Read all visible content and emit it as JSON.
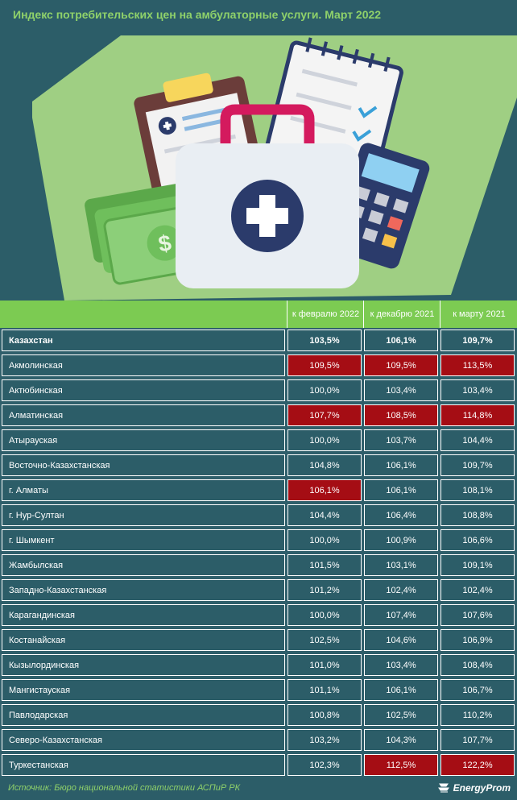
{
  "title": "Индекс потребительских цен на амбулаторные услуги. Март 2022",
  "columns": [
    "к февралю 2022",
    "к декабрю 2021",
    "к марту 2021"
  ],
  "chart_data": {
    "type": "table",
    "title": "Индекс потребительских цен на амбулаторные услуги. Март 2022",
    "columns": [
      "к февралю 2022",
      "к декабрю 2021",
      "к марту 2021"
    ],
    "rows": [
      {
        "name": "Казахстан",
        "values": [
          "103,5%",
          "106,1%",
          "109,7%"
        ],
        "highlight": [
          false,
          false,
          false
        ],
        "bold": true
      },
      {
        "name": "Акмолинская",
        "values": [
          "109,5%",
          "109,5%",
          "113,5%"
        ],
        "highlight": [
          true,
          true,
          true
        ]
      },
      {
        "name": "Актюбинская",
        "values": [
          "100,0%",
          "103,4%",
          "103,4%"
        ],
        "highlight": [
          false,
          false,
          false
        ]
      },
      {
        "name": "Алматинская",
        "values": [
          "107,7%",
          "108,5%",
          "114,8%"
        ],
        "highlight": [
          true,
          true,
          true
        ]
      },
      {
        "name": "Атырауская",
        "values": [
          "100,0%",
          "103,7%",
          "104,4%"
        ],
        "highlight": [
          false,
          false,
          false
        ]
      },
      {
        "name": "Восточно-Казахстанская",
        "values": [
          "104,8%",
          "106,1%",
          "109,7%"
        ],
        "highlight": [
          false,
          false,
          false
        ]
      },
      {
        "name": "г. Алматы",
        "values": [
          "106,1%",
          "106,1%",
          "108,1%"
        ],
        "highlight": [
          true,
          false,
          false
        ]
      },
      {
        "name": "г. Нур-Султан",
        "values": [
          "104,4%",
          "106,4%",
          "108,8%"
        ],
        "highlight": [
          false,
          false,
          false
        ]
      },
      {
        "name": "г. Шымкент",
        "values": [
          "100,0%",
          "100,9%",
          "106,6%"
        ],
        "highlight": [
          false,
          false,
          false
        ]
      },
      {
        "name": "Жамбылская",
        "values": [
          "101,5%",
          "103,1%",
          "109,1%"
        ],
        "highlight": [
          false,
          false,
          false
        ]
      },
      {
        "name": "Западно-Казахстанская",
        "values": [
          "101,2%",
          "102,4%",
          "102,4%"
        ],
        "highlight": [
          false,
          false,
          false
        ]
      },
      {
        "name": "Карагандинская",
        "values": [
          "100,0%",
          "107,4%",
          "107,6%"
        ],
        "highlight": [
          false,
          false,
          false
        ]
      },
      {
        "name": "Костанайская",
        "values": [
          "102,5%",
          "104,6%",
          "106,9%"
        ],
        "highlight": [
          false,
          false,
          false
        ]
      },
      {
        "name": "Кызылординская",
        "values": [
          "101,0%",
          "103,4%",
          "108,4%"
        ],
        "highlight": [
          false,
          false,
          false
        ]
      },
      {
        "name": "Мангистауская",
        "values": [
          "101,1%",
          "106,1%",
          "106,7%"
        ],
        "highlight": [
          false,
          false,
          false
        ]
      },
      {
        "name": "Павлодарская",
        "values": [
          "100,8%",
          "102,5%",
          "110,2%"
        ],
        "highlight": [
          false,
          false,
          false
        ]
      },
      {
        "name": "Северо-Казахстанская",
        "values": [
          "103,2%",
          "104,3%",
          "107,7%"
        ],
        "highlight": [
          false,
          false,
          false
        ]
      },
      {
        "name": "Туркестанская",
        "values": [
          "102,3%",
          "112,5%",
          "122,2%"
        ],
        "highlight": [
          false,
          true,
          true
        ]
      }
    ]
  },
  "colors": {
    "background": "#2c5d68",
    "accent_green": "#7ccb52",
    "highlight_red": "#a50d14"
  },
  "footer": {
    "source": "Источник: Бюро национальной статистики АСПиР РК",
    "logo": "EnergyProm"
  }
}
